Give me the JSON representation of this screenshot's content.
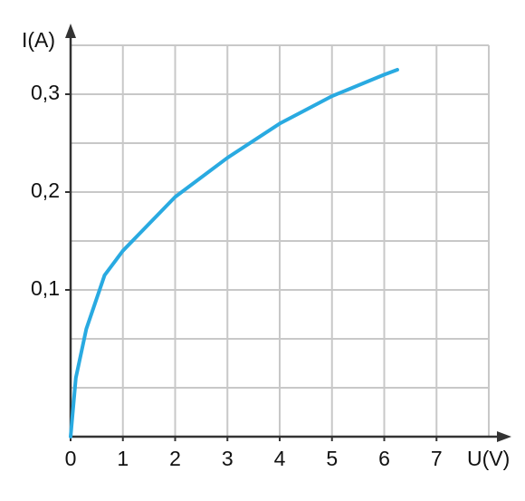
{
  "chart_data": {
    "type": "line",
    "y_label": "I(A)",
    "x_label": "U(V)",
    "x": [
      0,
      0.1,
      0.3,
      0.65,
      1,
      2,
      3,
      4,
      5,
      6,
      6.25
    ],
    "series": [
      {
        "color": "#29aae1",
        "values": [
          -0.05,
          0.01,
          0.06,
          0.115,
          0.14,
          0.195,
          0.235,
          0.27,
          0.298,
          0.32,
          0.325
        ]
      }
    ],
    "xlim": [
      0,
      8
    ],
    "ylim": [
      -0.05,
      0.35
    ],
    "xticks": [
      0,
      1,
      2,
      3,
      4,
      5,
      6,
      7
    ],
    "yticks": [
      {
        "value": 0.1,
        "label": "0,1"
      },
      {
        "value": 0.2,
        "label": "0,2"
      },
      {
        "value": 0.3,
        "label": "0,3"
      }
    ],
    "xgrid": [
      1,
      2,
      3,
      4,
      5,
      6,
      7,
      8
    ],
    "ygrid": [
      0,
      0.05,
      0.1,
      0.15,
      0.2,
      0.25,
      0.3,
      0.35
    ],
    "grid": true
  }
}
